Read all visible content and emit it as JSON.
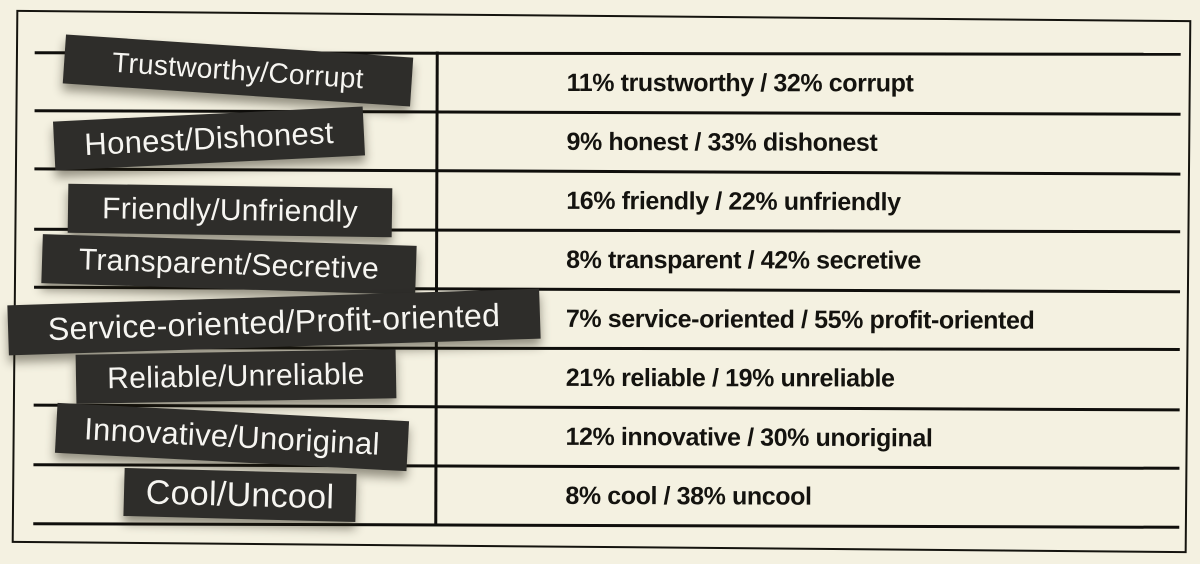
{
  "chart_data": {
    "type": "table",
    "description": "Attribute-pair rating table",
    "columns": [
      "attribute_pair",
      "rating"
    ],
    "rows": [
      {
        "label": "Trustworthy/Corrupt",
        "value_text": "11% trustworthy / 32% corrupt",
        "positive": {
          "name": "trustworthy",
          "pct": 11
        },
        "negative": {
          "name": "corrupt",
          "pct": 32
        }
      },
      {
        "label": "Honest/Dishonest",
        "value_text": "9% honest / 33% dishonest",
        "positive": {
          "name": "honest",
          "pct": 9
        },
        "negative": {
          "name": "dishonest",
          "pct": 33
        }
      },
      {
        "label": "Friendly/Unfriendly",
        "value_text": "16% friendly / 22% unfriendly",
        "positive": {
          "name": "friendly",
          "pct": 16
        },
        "negative": {
          "name": "unfriendly",
          "pct": 22
        }
      },
      {
        "label": "Transparent/Secretive",
        "value_text": "8% transparent / 42% secretive",
        "positive": {
          "name": "transparent",
          "pct": 8
        },
        "negative": {
          "name": "secretive",
          "pct": 42
        }
      },
      {
        "label": "Service-oriented/Profit-oriented",
        "value_text": "7% service-oriented / 55% profit-oriented",
        "positive": {
          "name": "service-oriented",
          "pct": 7
        },
        "negative": {
          "name": "profit-oriented",
          "pct": 55
        }
      },
      {
        "label": "Reliable/Unreliable",
        "value_text": "21% reliable / 19% unreliable",
        "positive": {
          "name": "reliable",
          "pct": 21
        },
        "negative": {
          "name": "unreliable",
          "pct": 19
        }
      },
      {
        "label": "Innovative/Unoriginal",
        "value_text": "12% innovative / 30% unoriginal",
        "positive": {
          "name": "innovative",
          "pct": 12
        },
        "negative": {
          "name": "unoriginal",
          "pct": 30
        }
      },
      {
        "label": "Cool/Uncool",
        "value_text": "8% cool / 38% uncool",
        "positive": {
          "name": "cool",
          "pct": 8
        },
        "negative": {
          "name": "uncool",
          "pct": 38
        }
      }
    ]
  },
  "colors": {
    "background": "#f4f1e1",
    "label_background": "#2e2d2a",
    "label_text": "#f6f5f1",
    "rule_line": "#100f0c",
    "value_text": "#14130f"
  }
}
